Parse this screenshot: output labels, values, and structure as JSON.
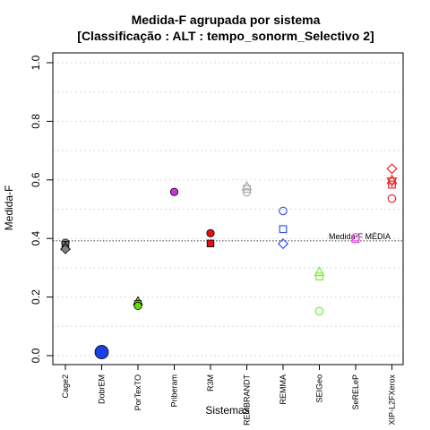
{
  "chart_data": {
    "type": "scatter",
    "title": "Medida-F agrupada por sistema",
    "subtitle": "[Classificação : ALT : tempo_sonorm_Selectivo 2]",
    "xlabel": "Sistemas",
    "ylabel": "Medida-F",
    "ylim": [
      0.0,
      1.0
    ],
    "yticks": [
      "0.0",
      "0.2",
      "0.4",
      "0.6",
      "0.8",
      "1.0"
    ],
    "grid": true,
    "categories": [
      "Cage2",
      "DobrEM",
      "PorTexTO",
      "Priberam",
      "R3M",
      "REMBRANDT",
      "REMMA",
      "SEIGeo",
      "SeRELeP",
      "XIP-L2FXerox"
    ],
    "reference_line": {
      "label": "Medida-F MÉDIA",
      "value": 0.392
    },
    "points": [
      {
        "category": "Cage2",
        "y": 0.385,
        "shape": "circle",
        "color": "#7f7f7f",
        "filled": true
      },
      {
        "category": "Cage2",
        "y": 0.378,
        "shape": "square",
        "color": "#7f7f7f",
        "filled": true
      },
      {
        "category": "Cage2",
        "y": 0.374,
        "shape": "triangle",
        "color": "#7f7f7f",
        "filled": true
      },
      {
        "category": "Cage2",
        "y": 0.364,
        "shape": "diamond",
        "color": "#7f7f7f",
        "filled": true
      },
      {
        "category": "DobrEM",
        "y": 0.012,
        "shape": "circle",
        "color": "#1c3fe3",
        "filled": true,
        "large": true
      },
      {
        "category": "PorTexTO",
        "y": 0.186,
        "shape": "triangle",
        "color": "#66dd00",
        "filled": true
      },
      {
        "category": "PorTexTO",
        "y": 0.176,
        "shape": "square",
        "color": "#66dd00",
        "filled": true
      },
      {
        "category": "PorTexTO",
        "y": 0.17,
        "shape": "circle",
        "color": "#66dd00",
        "filled": true
      },
      {
        "category": "Priberam",
        "y": 0.559,
        "shape": "circle",
        "color": "#cc33dd",
        "filled": true
      },
      {
        "category": "R3M",
        "y": 0.418,
        "shape": "circle",
        "color": "#dd1111",
        "filled": true
      },
      {
        "category": "R3M",
        "y": 0.383,
        "shape": "square",
        "color": "#dd1111",
        "filled": true
      },
      {
        "category": "REMBRANDT",
        "y": 0.578,
        "shape": "triangle",
        "color": "#aaaaaa",
        "filled": false
      },
      {
        "category": "REMBRANDT",
        "y": 0.569,
        "shape": "square",
        "color": "#aaaaaa",
        "filled": false
      },
      {
        "category": "REMBRANDT",
        "y": 0.558,
        "shape": "circle",
        "color": "#aaaaaa",
        "filled": false
      },
      {
        "category": "REMMA",
        "y": 0.494,
        "shape": "circle",
        "color": "#3355ee",
        "filled": false
      },
      {
        "category": "REMMA",
        "y": 0.432,
        "shape": "square",
        "color": "#3355ee",
        "filled": false
      },
      {
        "category": "REMMA",
        "y": 0.382,
        "shape": "diamond",
        "color": "#3355ee",
        "filled": false
      },
      {
        "category": "SEIGeo",
        "y": 0.286,
        "shape": "triangle",
        "color": "#77ee33",
        "filled": false
      },
      {
        "category": "SEIGeo",
        "y": 0.27,
        "shape": "square",
        "color": "#77ee33",
        "filled": false
      },
      {
        "category": "SEIGeo",
        "y": 0.152,
        "shape": "circle",
        "color": "#77ee33",
        "filled": false
      },
      {
        "category": "SeRELeP",
        "y": 0.404,
        "shape": "circle",
        "color": "#dd55dd",
        "filled": false
      },
      {
        "category": "SeRELeP",
        "y": 0.398,
        "shape": "square",
        "color": "#dd55dd",
        "filled": false
      },
      {
        "category": "XIP-L2FXerox",
        "y": 0.638,
        "shape": "diamond",
        "color": "#ee2222",
        "filled": false
      },
      {
        "category": "XIP-L2FXerox",
        "y": 0.6,
        "shape": "triangle",
        "color": "#ee2222",
        "filled": false
      },
      {
        "category": "XIP-L2FXerox",
        "y": 0.594,
        "shape": "triangle-down",
        "color": "#ee2222",
        "filled": false
      },
      {
        "category": "XIP-L2FXerox",
        "y": 0.584,
        "shape": "square",
        "color": "#ee2222",
        "filled": false
      },
      {
        "category": "XIP-L2FXerox",
        "y": 0.536,
        "shape": "circle",
        "color": "#ee2222",
        "filled": false
      }
    ]
  }
}
